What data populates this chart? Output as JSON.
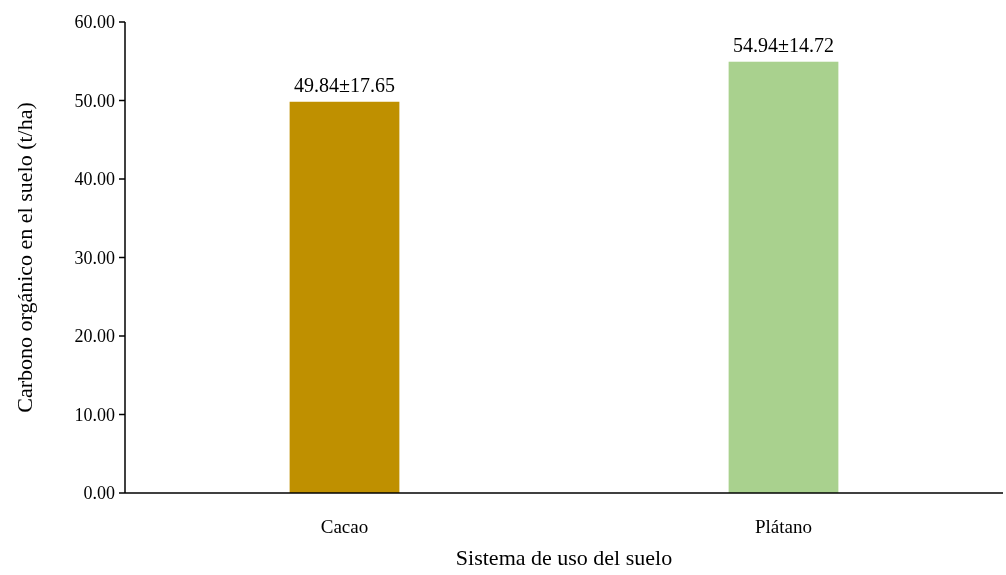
{
  "chart_data": {
    "type": "bar",
    "xlabel": "Sistema de uso del suelo",
    "ylabel": "Carbono orgánico en el suelo (t/ha)",
    "categories": [
      "Cacao",
      "Plátano"
    ],
    "values": [
      49.84,
      54.94
    ],
    "colors": [
      "#bf9000",
      "#a9d18e"
    ],
    "value_labels": [
      "49.84±17.65",
      "54.94±14.72"
    ],
    "ylim": [
      0,
      60
    ],
    "yticks": [
      {
        "value": 0,
        "label": "0.00"
      },
      {
        "value": 10,
        "label": "10.00"
      },
      {
        "value": 20,
        "label": "20.00"
      },
      {
        "value": 30,
        "label": "30.00"
      },
      {
        "value": 40,
        "label": "40.00"
      },
      {
        "value": 50,
        "label": "50.00"
      },
      {
        "value": 60,
        "label": "60.00"
      }
    ],
    "grid": false
  }
}
